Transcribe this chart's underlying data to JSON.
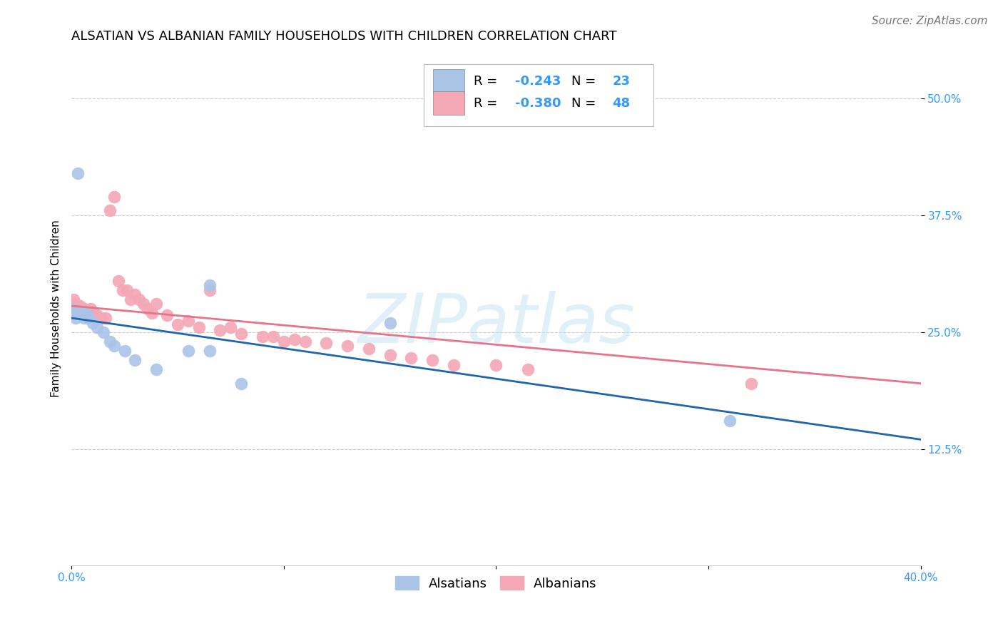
{
  "title": "ALSATIAN VS ALBANIAN FAMILY HOUSEHOLDS WITH CHILDREN CORRELATION CHART",
  "source": "Source: ZipAtlas.com",
  "ylabel": "Family Households with Children",
  "watermark": "ZIPatlas",
  "xlim": [
    0.0,
    0.4
  ],
  "ylim": [
    0.0,
    0.55
  ],
  "xtick_positions": [
    0.0,
    0.1,
    0.2,
    0.3,
    0.4
  ],
  "xticklabels": [
    "0.0%",
    "",
    "",
    "",
    "40.0%"
  ],
  "ytick_positions": [
    0.125,
    0.25,
    0.375,
    0.5
  ],
  "yticklabels": [
    "12.5%",
    "25.0%",
    "37.5%",
    "50.0%"
  ],
  "grid_color": "#cccccc",
  "background_color": "#ffffff",
  "alsatian_color": "#aac4e8",
  "albanian_color": "#f4a7b5",
  "alsatian_line_color": "#2166ac",
  "albanian_line_color": "#e8748a",
  "tick_color": "#3399ff",
  "R_alsatian": -0.243,
  "N_alsatian": 23,
  "R_albanian": -0.38,
  "N_albanian": 48,
  "alsatian_x": [
    0.001,
    0.002,
    0.003,
    0.004,
    0.005,
    0.006,
    0.007,
    0.008,
    0.01,
    0.012,
    0.015,
    0.018,
    0.02,
    0.025,
    0.03,
    0.04,
    0.055,
    0.065,
    0.08,
    0.15,
    0.003,
    0.31,
    0.065
  ],
  "alsatian_y": [
    0.275,
    0.265,
    0.27,
    0.27,
    0.27,
    0.265,
    0.27,
    0.265,
    0.26,
    0.255,
    0.25,
    0.24,
    0.235,
    0.23,
    0.22,
    0.21,
    0.23,
    0.23,
    0.195,
    0.26,
    0.42,
    0.155,
    0.3
  ],
  "albanian_x": [
    0.001,
    0.002,
    0.003,
    0.004,
    0.005,
    0.006,
    0.007,
    0.008,
    0.009,
    0.01,
    0.012,
    0.014,
    0.016,
    0.018,
    0.02,
    0.022,
    0.024,
    0.026,
    0.028,
    0.03,
    0.032,
    0.034,
    0.036,
    0.038,
    0.04,
    0.045,
    0.05,
    0.055,
    0.06,
    0.065,
    0.07,
    0.075,
    0.08,
    0.09,
    0.095,
    0.1,
    0.105,
    0.11,
    0.12,
    0.13,
    0.14,
    0.15,
    0.16,
    0.17,
    0.18,
    0.2,
    0.215,
    0.32
  ],
  "albanian_y": [
    0.285,
    0.28,
    0.275,
    0.278,
    0.272,
    0.275,
    0.272,
    0.268,
    0.275,
    0.272,
    0.268,
    0.265,
    0.265,
    0.38,
    0.395,
    0.305,
    0.295,
    0.295,
    0.285,
    0.29,
    0.285,
    0.28,
    0.275,
    0.27,
    0.28,
    0.268,
    0.258,
    0.262,
    0.255,
    0.295,
    0.252,
    0.255,
    0.248,
    0.245,
    0.245,
    0.24,
    0.242,
    0.24,
    0.238,
    0.235,
    0.232,
    0.225,
    0.222,
    0.22,
    0.215,
    0.215,
    0.21,
    0.195
  ],
  "title_fontsize": 13,
  "source_fontsize": 11,
  "label_fontsize": 11,
  "tick_fontsize": 11,
  "legend_fontsize": 13,
  "watermark_fontsize": 70,
  "alsatian_line_x0": 0.0,
  "alsatian_line_y0": 0.265,
  "alsatian_line_x1": 0.4,
  "alsatian_line_y1": 0.135,
  "albanian_line_x0": 0.0,
  "albanian_line_y0": 0.278,
  "albanian_line_x1": 0.4,
  "albanian_line_y1": 0.195
}
